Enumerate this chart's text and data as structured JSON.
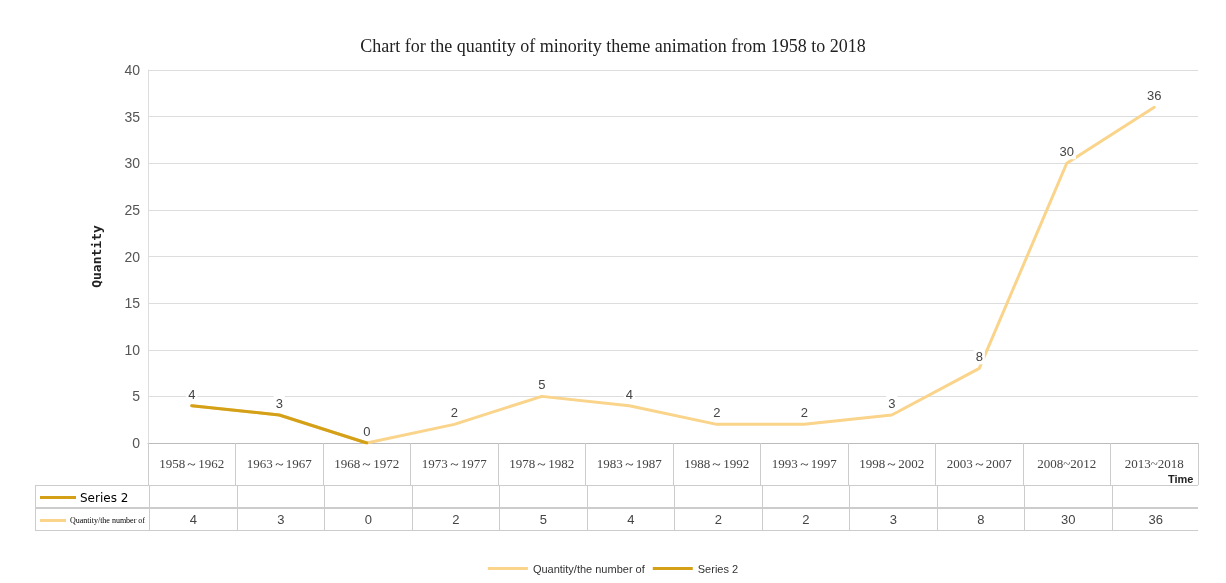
{
  "chart_data": {
    "type": "line",
    "title": "Chart for the quantity of minority theme animation from 1958 to 2018",
    "xlabel": "Time",
    "ylabel": "Quantity",
    "categories": [
      "1958～1962",
      "1963～1967",
      "1968～1972",
      "1973～1977",
      "1978～1982",
      "1983～1987",
      "1988～1992",
      "1993～1997",
      "1998～2002",
      "2003～2007",
      "2008~2012",
      "2013~2018"
    ],
    "series": [
      {
        "name": "Quantity/the number of",
        "color": "#f9d48a",
        "values": [
          4,
          3,
          0,
          2,
          5,
          4,
          2,
          2,
          3,
          8,
          30,
          36
        ],
        "value_labels": [
          "4",
          "3",
          "0",
          "2",
          "5",
          "4",
          "2",
          "2",
          "3",
          "8",
          "30",
          "36"
        ]
      },
      {
        "name": "Series 2",
        "color": "#d4a017",
        "values": [
          4,
          3,
          0,
          null,
          null,
          null,
          null,
          null,
          null,
          null,
          null,
          null
        ],
        "value_labels": [
          null,
          null,
          null,
          null,
          null,
          null,
          null,
          null,
          null,
          null,
          null,
          null
        ]
      }
    ],
    "ylim": [
      0,
      40
    ],
    "yticks": [
      0,
      5,
      10,
      15,
      20,
      25,
      30,
      35,
      40
    ],
    "grid": "y",
    "legend": "bottom",
    "marker": "none",
    "line_style": "solid"
  }
}
